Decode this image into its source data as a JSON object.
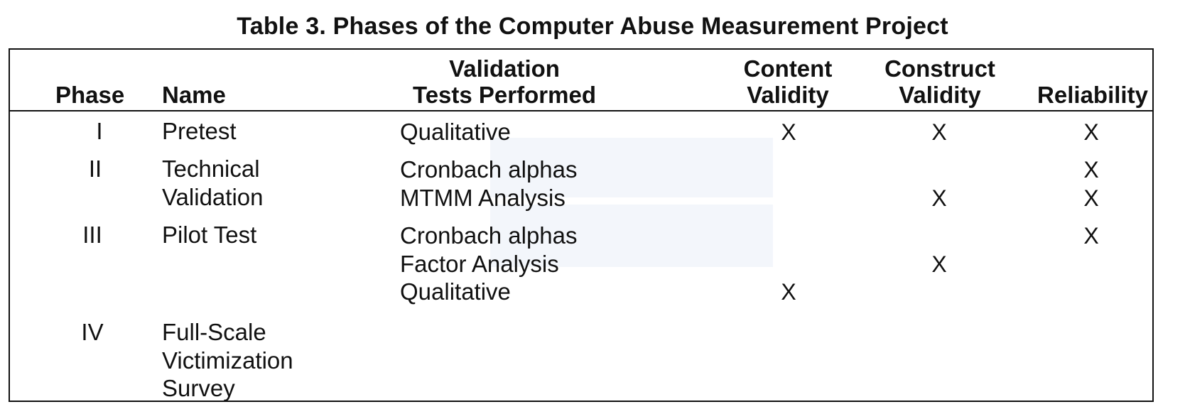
{
  "title": "Table 3. Phases of the Computer Abuse Measurement Project",
  "headers": {
    "phase": "Phase",
    "name": "Name",
    "tests_line1": "Validation",
    "tests_line2": "Tests Performed",
    "content_line1": "Content",
    "content_line2": "Validity",
    "construct_line1": "Construct",
    "construct_line2": "Validity",
    "reliability": "Reliability"
  },
  "rows": [
    {
      "phase": "I",
      "name": [
        "Pretest"
      ],
      "tests": [
        {
          "label": "Qualitative",
          "content": "X",
          "construct": "X",
          "reliability": "X"
        }
      ]
    },
    {
      "phase": "II",
      "name": [
        "Technical",
        "Validation"
      ],
      "tests": [
        {
          "label": "Cronbach alphas",
          "content": "",
          "construct": "",
          "reliability": "X"
        },
        {
          "label": "MTMM Analysis",
          "content": "",
          "construct": "X",
          "reliability": "X"
        }
      ]
    },
    {
      "phase": "III",
      "name": [
        "Pilot Test"
      ],
      "tests": [
        {
          "label": "Cronbach alphas",
          "content": "",
          "construct": "",
          "reliability": "X"
        },
        {
          "label": "Factor Analysis",
          "content": "",
          "construct": "X",
          "reliability": ""
        },
        {
          "label": "Qualitative",
          "content": "X",
          "construct": "",
          "reliability": ""
        }
      ]
    },
    {
      "phase": "IV",
      "name": [
        "Full-Scale",
        "Victimization",
        "Survey"
      ],
      "tests": []
    }
  ]
}
